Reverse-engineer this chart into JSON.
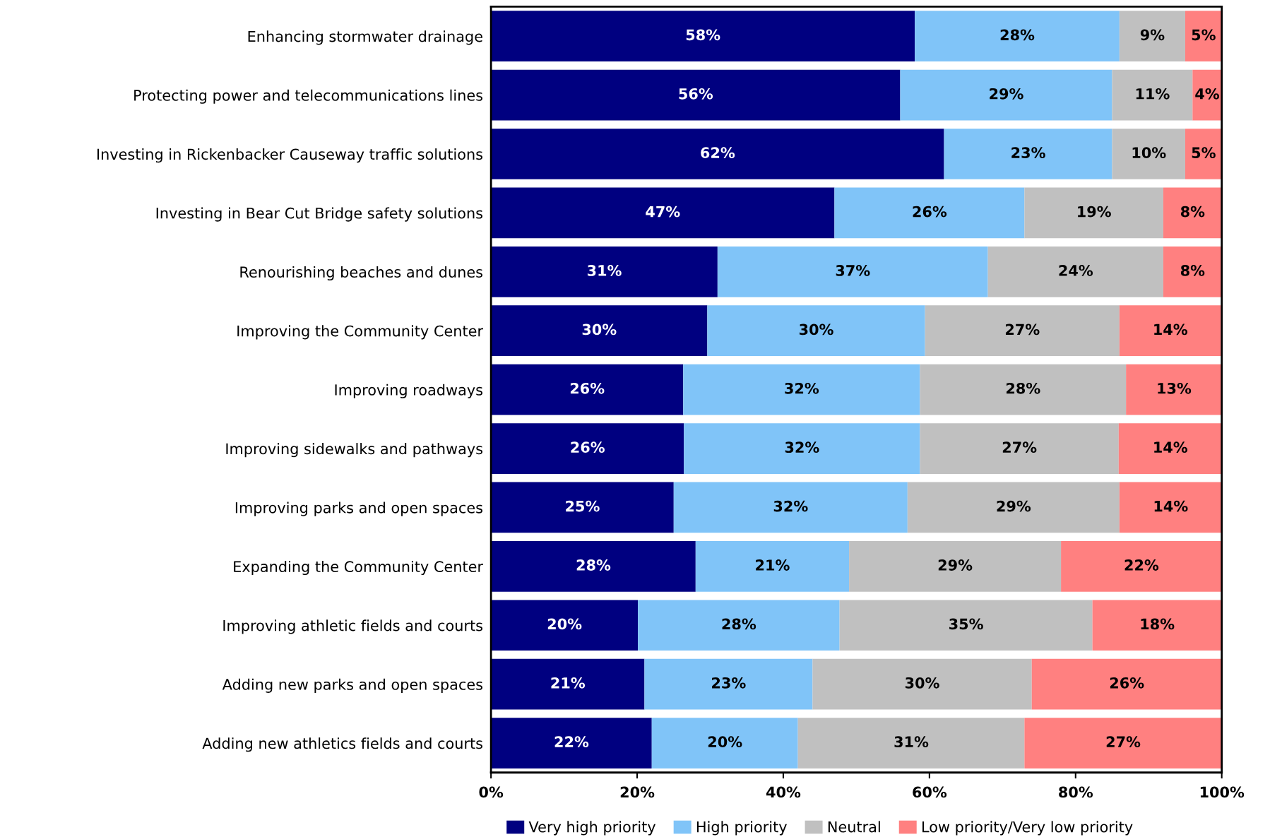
{
  "chart_data": {
    "type": "bar",
    "orientation": "horizontal",
    "stacked": true,
    "categories": [
      "Enhancing stormwater drainage",
      "Protecting power and telecommunications lines",
      "Investing in Rickenbacker Causeway traffic solutions",
      "Investing in Bear Cut Bridge safety solutions",
      "Renourishing beaches and dunes",
      "Improving the Community Center",
      "Improving roadways",
      "Improving sidewalks and pathways",
      "Improving parks and open spaces",
      "Expanding the Community Center",
      "Improving athletic fields and courts",
      "Adding new parks and open spaces",
      "Adding new athletics fields and courts"
    ],
    "series": [
      {
        "name": "Very high priority",
        "color": "#000080",
        "values": [
          58,
          56,
          62,
          47,
          31,
          29.6,
          26.3,
          26.4,
          25,
          28,
          20.1,
          21,
          22
        ],
        "value_labels": [
          "58%",
          "56%",
          "62%",
          "47%",
          "31%",
          "30%",
          "26%",
          "26%",
          "25%",
          "28%",
          "20%",
          "21%",
          "22%"
        ]
      },
      {
        "name": "High priority",
        "color": "#80c4f8",
        "values": [
          28,
          29,
          23,
          26,
          37,
          29.8,
          32.4,
          32.3,
          32,
          21,
          27.6,
          23,
          20
        ],
        "value_labels": [
          "28%",
          "29%",
          "23%",
          "26%",
          "37%",
          "30%",
          "32%",
          "32%",
          "32%",
          "21%",
          "28%",
          "23%",
          "20%"
        ]
      },
      {
        "name": "Neutral",
        "color": "#c0c0c0",
        "values": [
          9,
          11,
          10,
          19,
          24,
          26.6,
          28.2,
          27.2,
          29,
          29,
          34.6,
          30,
          31
        ],
        "value_labels": [
          "9%",
          "11%",
          "10%",
          "19%",
          "24%",
          "27%",
          "28%",
          "27%",
          "29%",
          "29%",
          "35%",
          "30%",
          "31%"
        ]
      },
      {
        "name": "Low priority/Very low priority",
        "color": "#ff8080",
        "values": [
          5,
          4,
          5,
          8,
          8,
          13.9,
          13.1,
          14.1,
          14,
          22,
          17.7,
          26,
          27
        ],
        "value_labels": [
          "5%",
          "4%",
          "5%",
          "8%",
          "8%",
          "14%",
          "13%",
          "14%",
          "14%",
          "22%",
          "18%",
          "26%",
          "27%"
        ]
      }
    ],
    "xlim": [
      0,
      100
    ],
    "xticks": [
      {
        "value": 0,
        "label": "0%"
      },
      {
        "value": 20,
        "label": "20%"
      },
      {
        "value": 40,
        "label": "40%"
      },
      {
        "value": 60,
        "label": "60%"
      },
      {
        "value": 80,
        "label": "80%"
      },
      {
        "value": 100,
        "label": "100%"
      }
    ],
    "grid": false,
    "legend": "bottom"
  }
}
